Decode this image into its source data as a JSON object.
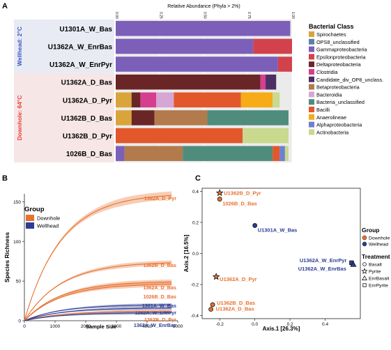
{
  "panel_labels": {
    "a": "A",
    "b": "B",
    "c": "C"
  },
  "colors": {
    "Spirochaetes": "#d9a53a",
    "OPS8_unclassified": "#5d7fa6",
    "Gammaproteobacteria": "#7b5fb8",
    "Epsilonproteobacteria": "#d2424c",
    "Deltaproteobacteria": "#6a2626",
    "Clostridia": "#d63f8e",
    "Candidate_div_OP8_unclass.": "#4e2f63",
    "Betaproteobacteria": "#b37a4c",
    "Bacteroidia": "#d6a6d4",
    "Bacteria_unclassified": "#4f8c7c",
    "Bacilli": "#e2582b",
    "Anaerolineae": "#f6ab17",
    "Alphaproteobacteria": "#6d7fd4",
    "Actinobacteria": "#c9d98d",
    "downhole": "#e8712e",
    "wellhead": "#2e3c93",
    "wellhead_label": "#3b56c3",
    "downhole_label": "#e8403c"
  },
  "chart_data": [
    {
      "type": "bar",
      "orientation": "horizontal",
      "stacked": true,
      "title": "Relative Abundance (Phyla > 2%)",
      "xlim": [
        0,
        1
      ],
      "xticks": [
        "0.00",
        "0.25",
        "0.50",
        "0.75",
        "1.00"
      ],
      "legend_title": "Bacterial Class",
      "legend_position": "right",
      "classes": [
        "Spirochaetes",
        "OPS8_unclassified",
        "Gammaproteobacteria",
        "Epsilonproteobacteria",
        "Deltaproteobacteria",
        "Clostridia",
        "Candidate_div_OP8_unclass.",
        "Betaproteobacteria",
        "Bacteroidia",
        "Bacteria_unclassified",
        "Bacilli",
        "Anaerolineae",
        "Alphaproteobacteria",
        "Actinobacteria"
      ],
      "groups": [
        {
          "label": "Wellhead: 2°C",
          "samples": [
            "U1301A_W_Bas",
            "U1362A_W_EnrBas",
            "U1362A_W_EnrPyr"
          ]
        },
        {
          "label": "Downhole: 64°C",
          "samples": [
            "U1362A_D_Bas",
            "U1362A_D_Pyr",
            "U1362B_D_Bas",
            "U1362B_D_Pyr",
            "1026B_D_Bas"
          ]
        }
      ],
      "rows": [
        {
          "sample": "U1301A_W_Bas",
          "segments": [
            [
              "Gammaproteobacteria",
              0.99
            ]
          ]
        },
        {
          "sample": "U1362A_W_EnrBas",
          "segments": [
            [
              "Gammaproteobacteria",
              0.78
            ],
            [
              "Epsilonproteobacteria",
              0.22
            ]
          ]
        },
        {
          "sample": "U1362A_W_EnrPyr",
          "segments": [
            [
              "Gammaproteobacteria",
              0.92
            ],
            [
              "Epsilonproteobacteria",
              0.08
            ]
          ]
        },
        {
          "sample": "U1362A_D_Bas",
          "segments": [
            [
              "Deltaproteobacteria",
              0.82
            ],
            [
              "Clostridia",
              0.03
            ],
            [
              "Candidate_div_OP8_unclass.",
              0.06
            ]
          ]
        },
        {
          "sample": "U1362A_D_Pyr",
          "segments": [
            [
              "Spirochaetes",
              0.09
            ],
            [
              "Deltaproteobacteria",
              0.05
            ],
            [
              "Clostridia",
              0.09
            ],
            [
              "Bacteroidia",
              0.1
            ],
            [
              "Bacilli",
              0.38
            ],
            [
              "Anaerolineae",
              0.18
            ],
            [
              "Actinobacteria",
              0.04
            ]
          ]
        },
        {
          "sample": "U1362B_D_Bas",
          "segments": [
            [
              "Spirochaetes",
              0.09
            ],
            [
              "Deltaproteobacteria",
              0.13
            ],
            [
              "Betaproteobacteria",
              0.3
            ],
            [
              "Bacteria_unclassified",
              0.46
            ]
          ]
        },
        {
          "sample": "U1362B_D_Pyr",
          "segments": [
            [
              "Bacilli",
              0.72
            ],
            [
              "Actinobacteria",
              0.26
            ]
          ]
        },
        {
          "sample": "1026B_D_Bas",
          "segments": [
            [
              "Gammaproteobacteria",
              0.05
            ],
            [
              "Betaproteobacteria",
              0.33
            ],
            [
              "Bacteria_unclassified",
              0.51
            ],
            [
              "Bacilli",
              0.04
            ],
            [
              "Alphaproteobacteria",
              0.03
            ],
            [
              "Actinobacteria",
              0.02
            ]
          ]
        }
      ]
    },
    {
      "type": "line",
      "xlabel": "Sample Size",
      "ylabel": "Species Richness",
      "xlim": [
        0,
        5000
      ],
      "ylim": [
        0,
        160
      ],
      "xticks": [
        0,
        1000,
        2000,
        3000,
        4000,
        5000
      ],
      "yticks": [
        0,
        50,
        100,
        150
      ],
      "legend_title": "Group",
      "legend_position": "top-left",
      "legend": [
        "Downhole",
        "Wellhead"
      ],
      "series": [
        {
          "name": "1362A_D_Pyr",
          "group": "Downhole",
          "xmax": 4800,
          "ymax": 158,
          "band": 5
        },
        {
          "name": "1362B_D_Bas",
          "group": "Downhole",
          "xmax": 4800,
          "ymax": 73,
          "band": 3
        },
        {
          "name": "1362A_D_Bas",
          "group": "Downhole",
          "xmax": 4800,
          "ymax": 49,
          "band": 3
        },
        {
          "name": "1026B_D_Bas",
          "group": "Downhole",
          "xmax": 4800,
          "ymax": 46,
          "band": 3
        },
        {
          "name": "1301A_W_Bas",
          "group": "Wellhead",
          "xmax": 4800,
          "ymax": 20,
          "band": 2
        },
        {
          "name": "1362A_W_EnrPyr",
          "group": "Wellhead",
          "xmax": 4800,
          "ymax": 16,
          "band": 2
        },
        {
          "name": "1362B_D_Pyr",
          "group": "Downhole",
          "xmax": 4800,
          "ymax": 12,
          "band": 2
        },
        {
          "name": "1362A_W_EnrBas",
          "group": "Wellhead",
          "xmax": 4800,
          "ymax": 10,
          "band": 2
        }
      ]
    },
    {
      "type": "scatter",
      "xlabel": "Axis.1   [26.3%]",
      "ylabel": "Axis.2   [16.5%]",
      "xlim": [
        -0.3,
        0.6
      ],
      "ylim": [
        -0.42,
        0.42
      ],
      "xticks": [
        "-0.2",
        "0.0",
        "0.2",
        "0.4"
      ],
      "yticks": [
        "-0.4",
        "-0.2",
        "0.0",
        "0.2",
        "0.4"
      ],
      "legend_group_title": "Group",
      "legend_groups": [
        "Downhole",
        "Wellhead"
      ],
      "legend_treatment_title": "Treatment",
      "legend_treatments": [
        "Basalt",
        "Pyrite",
        "EnrBasalt",
        "EnrPyrite"
      ],
      "points": [
        {
          "label": "U1362B_D_Pyr",
          "x": -0.2,
          "y": 0.39,
          "group": "Downhole",
          "shape": "star"
        },
        {
          "label": "1026B_D_Bas",
          "x": -0.2,
          "y": 0.35,
          "group": "Downhole",
          "shape": "circle"
        },
        {
          "label": "U1301A_W_Bas",
          "x": 0.0,
          "y": 0.18,
          "group": "Wellhead",
          "shape": "circle"
        },
        {
          "label": "U1362A_W_EnrPyr",
          "x": 0.55,
          "y": -0.06,
          "group": "Wellhead",
          "shape": "square"
        },
        {
          "label": "U1362A_W_EnrBas",
          "x": 0.56,
          "y": -0.07,
          "group": "Wellhead",
          "shape": "triangle"
        },
        {
          "label": "U1362A_D_Pyr",
          "x": -0.22,
          "y": -0.15,
          "group": "Downhole",
          "shape": "star"
        },
        {
          "label": "U1362B_D_Bas",
          "x": -0.24,
          "y": -0.33,
          "group": "Downhole",
          "shape": "circle"
        },
        {
          "label": "U1362A_D_Bas",
          "x": -0.25,
          "y": -0.36,
          "group": "Downhole",
          "shape": "circle"
        }
      ]
    }
  ]
}
